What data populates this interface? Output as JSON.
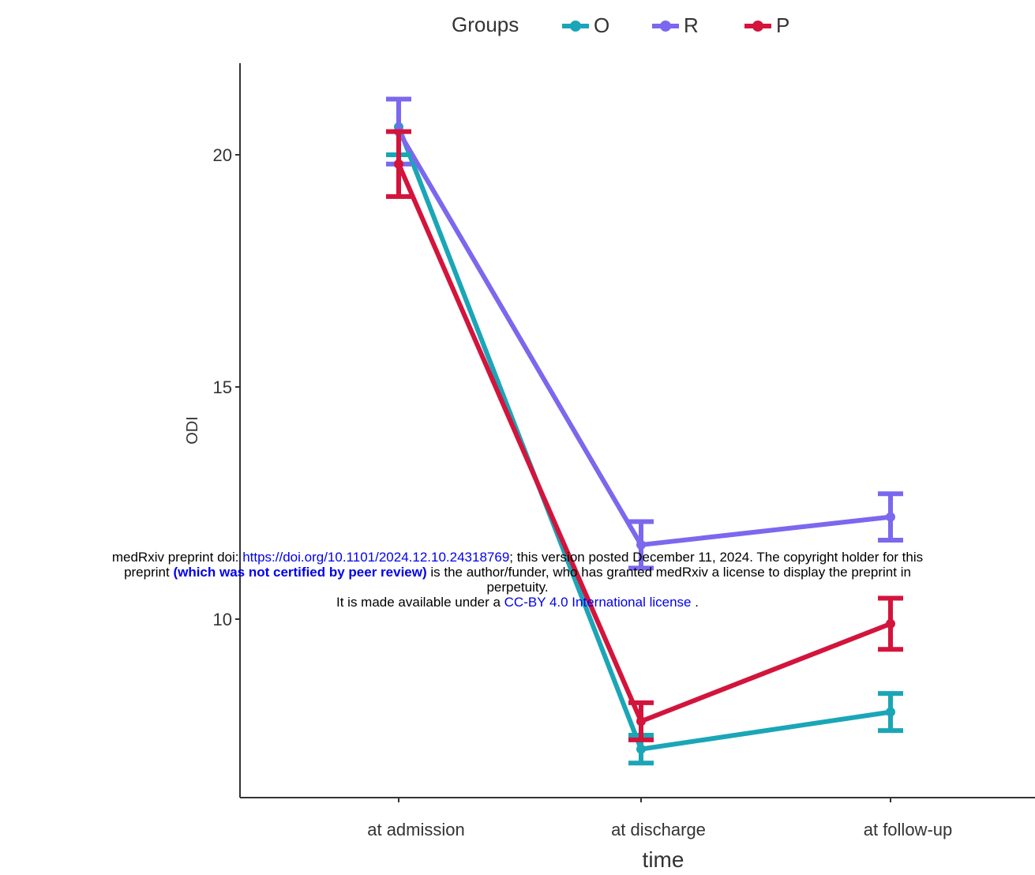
{
  "chart_data": {
    "type": "line",
    "title": "",
    "xlabel": "time",
    "ylabel": "ODI",
    "legend_title": "Groups",
    "legend_position": "top",
    "categories": [
      "at admission",
      "at discharge",
      "at follow-up"
    ],
    "ylim": [
      6.2,
      22.0
    ],
    "yticks": [
      10,
      15,
      20
    ],
    "grid": false,
    "series": [
      {
        "name": "O",
        "color": "#1aa6b7",
        "values": [
          20.6,
          7.2,
          8.0
        ],
        "errors": [
          0.6,
          0.3,
          0.4
        ]
      },
      {
        "name": "R",
        "color": "#7b68ee",
        "values": [
          20.5,
          11.6,
          12.2
        ],
        "errors": [
          0.7,
          0.5,
          0.5
        ]
      },
      {
        "name": "P",
        "color": "#d3143c",
        "values": [
          19.8,
          7.8,
          9.9
        ],
        "errors": [
          0.7,
          0.4,
          0.55
        ]
      }
    ]
  },
  "notice": {
    "line1_prefix": "medRxiv preprint doi: ",
    "doi_link": "https://doi.org/10.1101/2024.12.10.24318769",
    "line1_suffix": "; this version posted December 11, 2024. The copyright holder for this",
    "line2_prefix": "preprint ",
    "not_certified": "(which was not certified by peer review)",
    "line2_suffix": " is the author/funder, who has granted medRxiv a license to display the preprint in",
    "line3": "perpetuity.",
    "line4_prefix": "It is made available under a ",
    "license_link": "CC-BY 4.0 International license",
    "line4_suffix": " ."
  }
}
